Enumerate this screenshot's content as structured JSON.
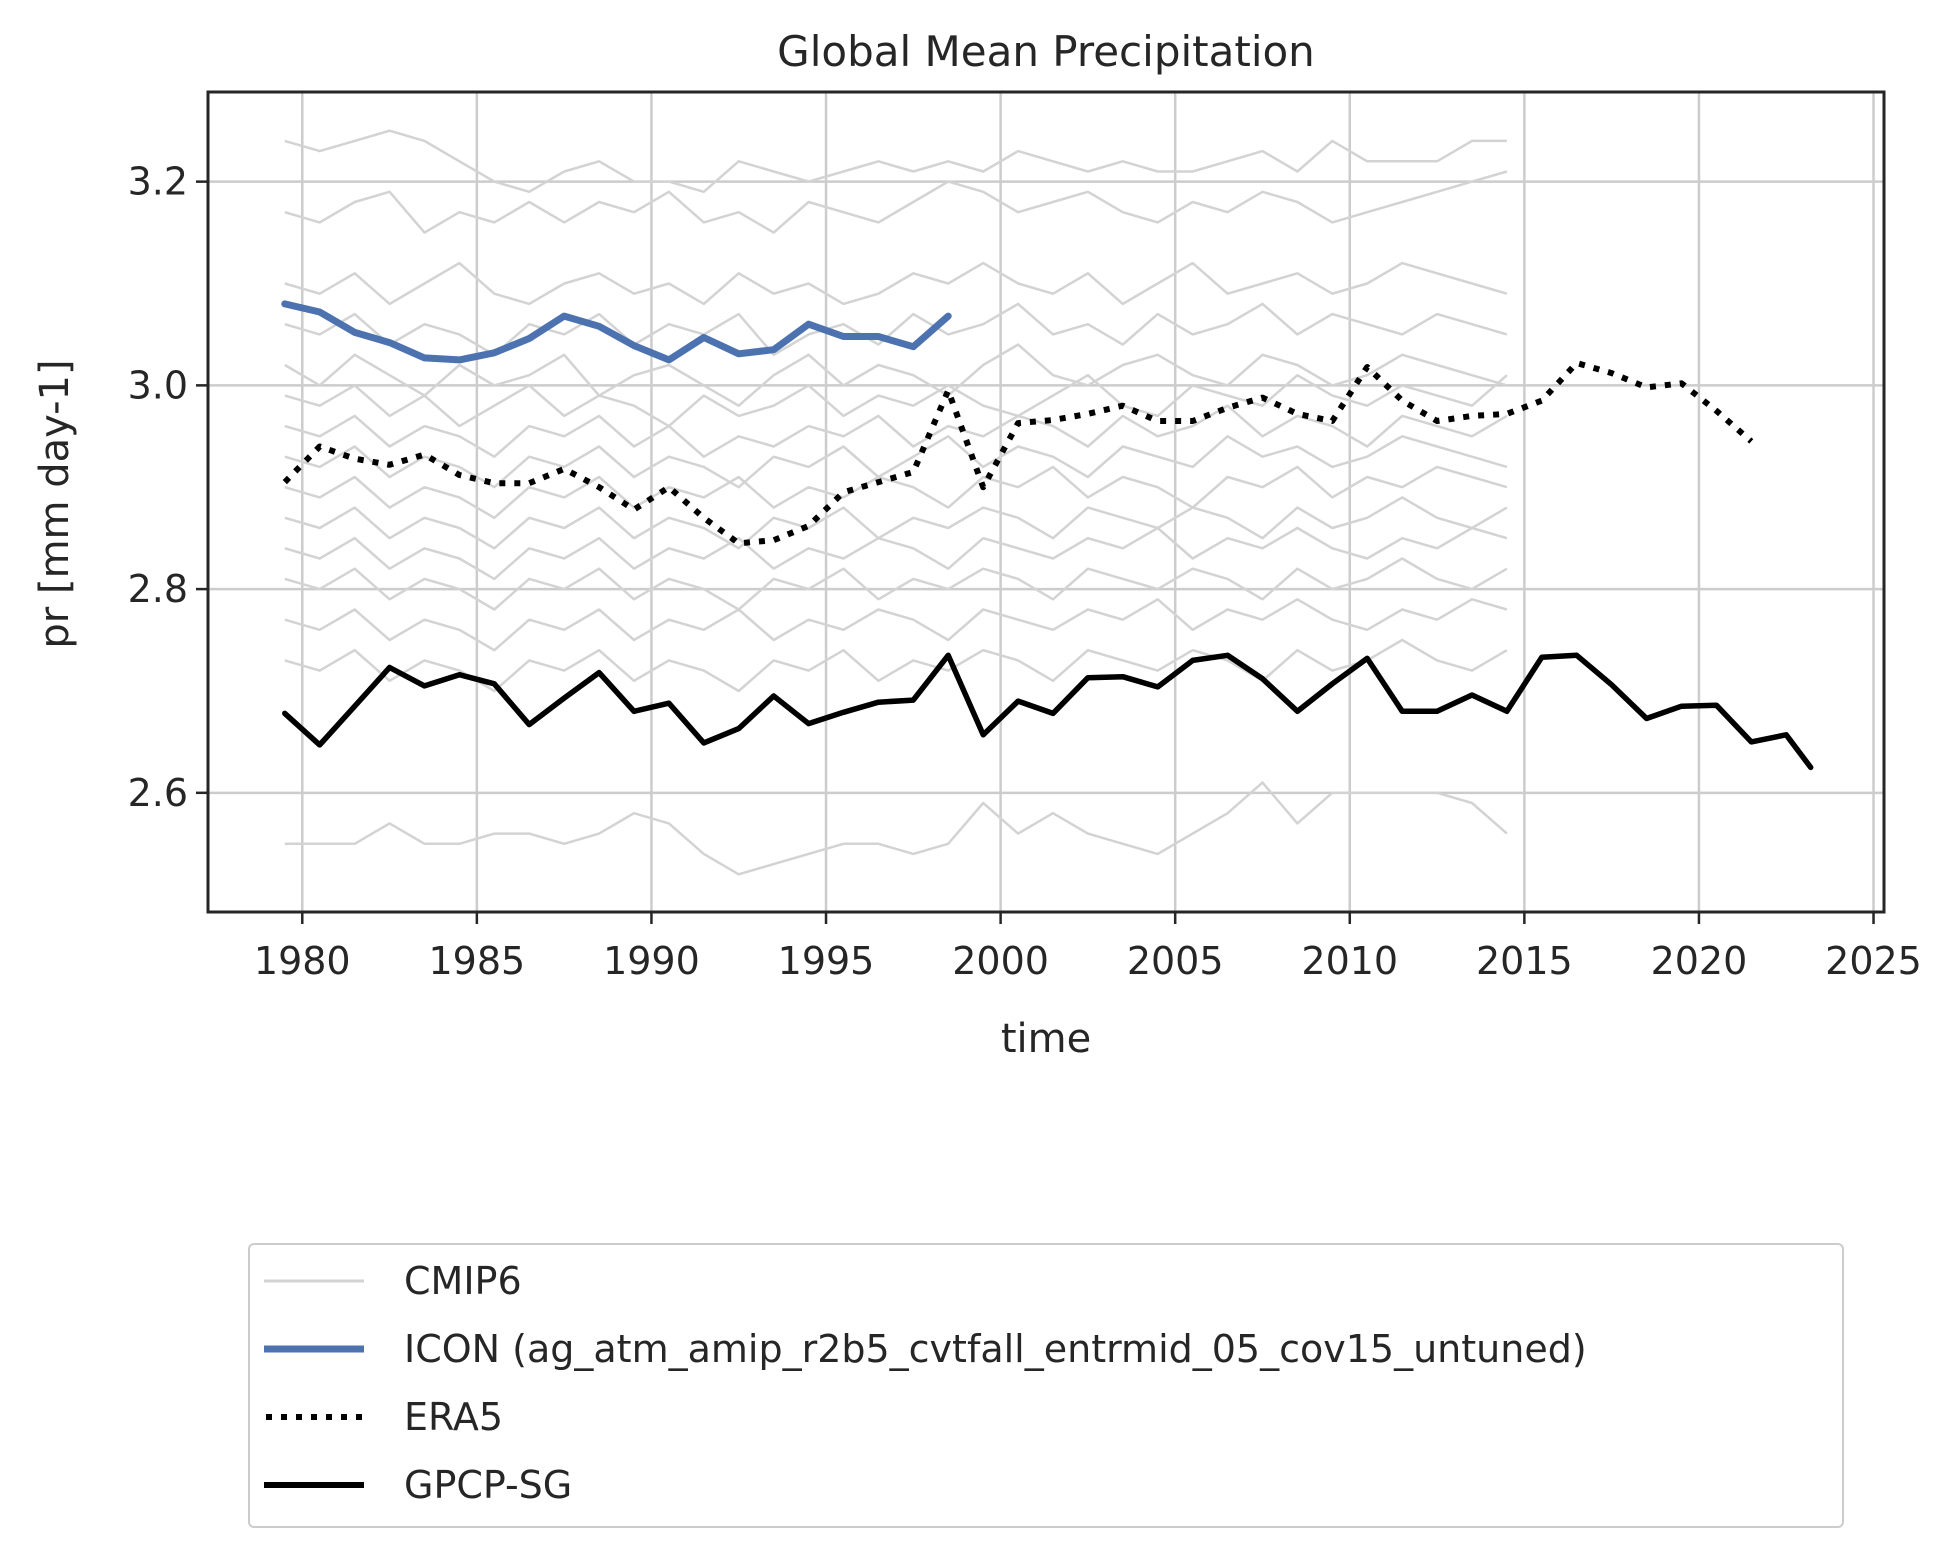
{
  "chart_data": {
    "type": "line",
    "title": "Global Mean Precipitation",
    "xlabel": "time",
    "ylabel": "pr [mm day-1]",
    "xlim": [
      1977.3,
      2025.3
    ],
    "ylim": [
      2.483,
      3.288
    ],
    "xticks": [
      "1980",
      "1985",
      "1990",
      "1995",
      "2000",
      "2005",
      "2010",
      "2015",
      "2020",
      "2025"
    ],
    "yticks": [
      "2.6",
      "2.8",
      "3.0",
      "3.2"
    ],
    "grid": true,
    "legend_position": "below plot",
    "series": [
      {
        "name": "CMIP6",
        "color": "#d3d3d3",
        "style": "thin",
        "x_start": 1979.5,
        "members": [
          [
            3.24,
            3.23,
            3.24,
            3.25,
            3.24,
            3.22,
            3.2,
            3.19,
            3.21,
            3.22,
            3.2,
            3.2,
            3.19,
            3.22,
            3.21,
            3.2,
            3.21,
            3.22,
            3.21,
            3.22,
            3.21,
            3.23,
            3.22,
            3.21,
            3.22,
            3.21,
            3.21,
            3.22,
            3.23,
            3.21,
            3.24,
            3.22,
            3.22,
            3.22,
            3.24,
            3.24
          ],
          [
            3.17,
            3.16,
            3.18,
            3.19,
            3.15,
            3.17,
            3.16,
            3.18,
            3.16,
            3.18,
            3.17,
            3.19,
            3.16,
            3.17,
            3.15,
            3.18,
            3.17,
            3.16,
            3.18,
            3.2,
            3.19,
            3.17,
            3.18,
            3.19,
            3.17,
            3.16,
            3.18,
            3.17,
            3.19,
            3.18,
            3.16,
            3.17,
            3.18,
            3.19,
            3.2,
            3.21
          ],
          [
            3.1,
            3.09,
            3.11,
            3.08,
            3.1,
            3.12,
            3.09,
            3.08,
            3.1,
            3.11,
            3.09,
            3.1,
            3.08,
            3.11,
            3.09,
            3.1,
            3.08,
            3.09,
            3.11,
            3.1,
            3.12,
            3.1,
            3.09,
            3.11,
            3.08,
            3.1,
            3.12,
            3.09,
            3.1,
            3.11,
            3.09,
            3.1,
            3.12,
            3.11,
            3.1,
            3.09
          ],
          [
            3.06,
            3.05,
            3.07,
            3.04,
            3.06,
            3.05,
            3.03,
            3.06,
            3.05,
            3.07,
            3.04,
            3.06,
            3.05,
            3.07,
            3.03,
            3.05,
            3.06,
            3.04,
            3.07,
            3.05,
            3.06,
            3.08,
            3.05,
            3.06,
            3.04,
            3.07,
            3.05,
            3.06,
            3.08,
            3.05,
            3.07,
            3.06,
            3.05,
            3.07,
            3.06,
            3.05
          ],
          [
            3.02,
            3.0,
            3.03,
            3.01,
            2.99,
            3.02,
            3.0,
            3.01,
            3.03,
            2.99,
            3.01,
            3.02,
            3.0,
            2.98,
            3.01,
            3.03,
            3.0,
            3.02,
            3.01,
            2.99,
            3.02,
            3.04,
            3.01,
            3.0,
            3.02,
            3.03,
            3.01,
            3.0,
            3.03,
            3.02,
            3.0,
            3.01,
            3.03,
            3.02,
            3.01,
            3.0
          ],
          [
            2.99,
            2.98,
            3.0,
            2.97,
            2.99,
            2.96,
            2.98,
            3.0,
            2.97,
            2.99,
            2.98,
            2.96,
            2.99,
            2.97,
            2.98,
            3.0,
            2.97,
            2.99,
            2.98,
            3.0,
            2.98,
            2.97,
            2.99,
            3.01,
            2.98,
            2.97,
            3.0,
            2.99,
            2.98,
            3.01,
            2.99,
            2.98,
            3.0,
            2.99,
            2.98,
            3.01
          ],
          [
            2.96,
            2.95,
            2.97,
            2.94,
            2.96,
            2.95,
            2.93,
            2.96,
            2.95,
            2.97,
            2.94,
            2.96,
            2.93,
            2.95,
            2.94,
            2.96,
            2.95,
            2.97,
            2.94,
            2.96,
            2.95,
            2.97,
            2.96,
            2.94,
            2.97,
            2.95,
            2.96,
            2.98,
            2.95,
            2.97,
            2.96,
            2.94,
            2.97,
            2.96,
            2.95,
            2.97
          ],
          [
            2.93,
            2.92,
            2.94,
            2.91,
            2.93,
            2.92,
            2.9,
            2.93,
            2.92,
            2.94,
            2.91,
            2.93,
            2.92,
            2.9,
            2.93,
            2.92,
            2.94,
            2.91,
            2.93,
            2.95,
            2.92,
            2.94,
            2.93,
            2.91,
            2.94,
            2.93,
            2.92,
            2.95,
            2.93,
            2.94,
            2.92,
            2.93,
            2.95,
            2.94,
            2.93,
            2.92
          ],
          [
            2.9,
            2.89,
            2.91,
            2.88,
            2.9,
            2.89,
            2.87,
            2.9,
            2.89,
            2.91,
            2.88,
            2.9,
            2.89,
            2.91,
            2.88,
            2.9,
            2.89,
            2.91,
            2.9,
            2.88,
            2.91,
            2.9,
            2.92,
            2.89,
            2.91,
            2.9,
            2.88,
            2.91,
            2.9,
            2.92,
            2.89,
            2.91,
            2.9,
            2.92,
            2.91,
            2.9
          ],
          [
            2.87,
            2.86,
            2.88,
            2.85,
            2.87,
            2.86,
            2.84,
            2.87,
            2.86,
            2.88,
            2.85,
            2.87,
            2.86,
            2.84,
            2.87,
            2.86,
            2.88,
            2.85,
            2.87,
            2.86,
            2.88,
            2.87,
            2.85,
            2.88,
            2.87,
            2.86,
            2.88,
            2.87,
            2.85,
            2.88,
            2.86,
            2.87,
            2.89,
            2.87,
            2.86,
            2.88
          ],
          [
            2.84,
            2.83,
            2.85,
            2.82,
            2.84,
            2.83,
            2.81,
            2.84,
            2.83,
            2.85,
            2.82,
            2.84,
            2.83,
            2.85,
            2.82,
            2.84,
            2.83,
            2.85,
            2.84,
            2.82,
            2.85,
            2.84,
            2.83,
            2.85,
            2.84,
            2.86,
            2.83,
            2.85,
            2.84,
            2.86,
            2.84,
            2.83,
            2.85,
            2.84,
            2.86,
            2.85
          ],
          [
            2.81,
            2.8,
            2.82,
            2.79,
            2.81,
            2.8,
            2.78,
            2.81,
            2.8,
            2.82,
            2.79,
            2.81,
            2.8,
            2.78,
            2.81,
            2.8,
            2.82,
            2.79,
            2.81,
            2.8,
            2.82,
            2.81,
            2.79,
            2.82,
            2.81,
            2.8,
            2.82,
            2.81,
            2.79,
            2.82,
            2.8,
            2.81,
            2.83,
            2.81,
            2.8,
            2.82
          ],
          [
            2.77,
            2.76,
            2.78,
            2.75,
            2.77,
            2.76,
            2.74,
            2.77,
            2.76,
            2.78,
            2.75,
            2.77,
            2.76,
            2.78,
            2.75,
            2.77,
            2.76,
            2.78,
            2.77,
            2.75,
            2.78,
            2.77,
            2.76,
            2.78,
            2.77,
            2.79,
            2.76,
            2.78,
            2.77,
            2.79,
            2.77,
            2.76,
            2.78,
            2.77,
            2.79,
            2.78
          ],
          [
            2.73,
            2.72,
            2.74,
            2.71,
            2.73,
            2.72,
            2.7,
            2.73,
            2.72,
            2.74,
            2.71,
            2.73,
            2.72,
            2.7,
            2.73,
            2.72,
            2.74,
            2.71,
            2.73,
            2.72,
            2.74,
            2.73,
            2.71,
            2.74,
            2.73,
            2.72,
            2.74,
            2.73,
            2.71,
            2.74,
            2.72,
            2.73,
            2.75,
            2.73,
            2.72,
            2.74
          ],
          [
            2.55,
            2.55,
            2.55,
            2.57,
            2.55,
            2.55,
            2.56,
            2.56,
            2.55,
            2.56,
            2.58,
            2.57,
            2.54,
            2.52,
            2.53,
            2.54,
            2.55,
            2.55,
            2.54,
            2.55,
            2.59,
            2.56,
            2.58,
            2.56,
            2.55,
            2.54,
            2.56,
            2.58,
            2.61,
            2.57,
            2.6,
            2.6,
            2.6,
            2.6,
            2.59,
            2.56
          ]
        ]
      },
      {
        "name": "ICON (ag_atm_amip_r2b5_cvtfall_entrmid_05_cov15_untuned)",
        "color": "#4c72b0",
        "style": "thick",
        "x": [
          1979.5,
          1980.5,
          1981.5,
          1982.5,
          1983.5,
          1984.5,
          1985.5,
          1986.5,
          1987.5,
          1988.5,
          1989.5,
          1990.5,
          1991.5,
          1992.5,
          1993.5,
          1994.5,
          1995.5,
          1996.5,
          1997.5,
          1998.5
        ],
        "y": [
          3.08,
          3.072,
          3.052,
          3.042,
          3.027,
          3.025,
          3.032,
          3.046,
          3.068,
          3.058,
          3.039,
          3.025,
          3.047,
          3.031,
          3.035,
          3.06,
          3.048,
          3.048,
          3.038,
          3.068
        ]
      },
      {
        "name": "ERA5",
        "color": "#000000",
        "style": "dotted",
        "x": [
          1979.5,
          1980.5,
          1981.5,
          1982.5,
          1983.5,
          1984.5,
          1985.5,
          1986.5,
          1987.5,
          1988.5,
          1989.5,
          1990.5,
          1991.5,
          1992.5,
          1993.5,
          1994.5,
          1995.5,
          1996.5,
          1997.5,
          1998.5,
          1999.5,
          2000.5,
          2001.5,
          2002.5,
          2003.5,
          2004.5,
          2005.5,
          2006.5,
          2007.5,
          2008.5,
          2009.5,
          2010.5,
          2011.5,
          2012.5,
          2013.5,
          2014.5,
          2015.5,
          2016.5,
          2017.5,
          2018.5,
          2019.5,
          2020.5,
          2021.5
        ],
        "y": [
          2.905,
          2.94,
          2.928,
          2.922,
          2.932,
          2.912,
          2.904,
          2.904,
          2.918,
          2.9,
          2.878,
          2.9,
          2.87,
          2.845,
          2.848,
          2.862,
          2.895,
          2.905,
          2.915,
          2.995,
          2.9,
          2.963,
          2.966,
          2.972,
          2.98,
          2.965,
          2.965,
          2.978,
          2.988,
          2.972,
          2.965,
          3.018,
          2.985,
          2.965,
          2.97,
          2.972,
          2.985,
          3.022,
          3.012,
          2.998,
          3.002,
          2.975,
          2.945
        ]
      },
      {
        "name": "GPCP-SG",
        "color": "#000000",
        "style": "solid",
        "x": [
          1979.5,
          1980.5,
          1981.5,
          1982.5,
          1983.5,
          1984.5,
          1985.5,
          1986.5,
          1987.5,
          1988.5,
          1989.5,
          1990.5,
          1991.5,
          1992.5,
          1993.5,
          1994.5,
          1995.5,
          1996.5,
          1997.5,
          1998.5,
          1999.5,
          2000.5,
          2001.5,
          2002.5,
          2003.5,
          2004.5,
          2005.5,
          2006.5,
          2007.5,
          2008.5,
          2009.5,
          2010.5,
          2011.5,
          2012.5,
          2013.5,
          2014.5,
          2015.5,
          2016.5,
          2017.5,
          2018.5,
          2019.5,
          2020.5,
          2021.5,
          2022.5,
          2023.2
        ],
        "y": [
          2.678,
          2.647,
          2.685,
          2.723,
          2.705,
          2.716,
          2.707,
          2.667,
          2.693,
          2.718,
          2.68,
          2.688,
          2.649,
          2.663,
          2.695,
          2.668,
          2.679,
          2.689,
          2.691,
          2.735,
          2.657,
          2.69,
          2.678,
          2.713,
          2.714,
          2.704,
          2.73,
          2.735,
          2.712,
          2.68,
          2.707,
          2.732,
          2.68,
          2.68,
          2.696,
          2.68,
          2.733,
          2.735,
          2.706,
          2.673,
          2.685,
          2.686,
          2.65,
          2.657,
          2.625
        ]
      }
    ]
  }
}
